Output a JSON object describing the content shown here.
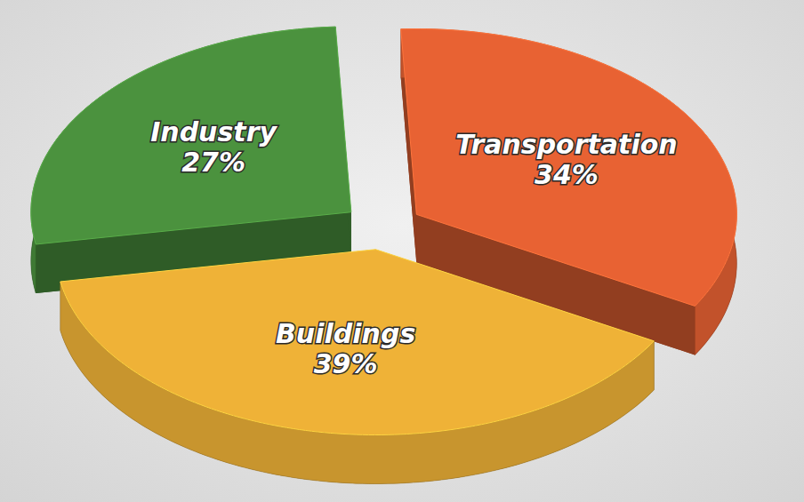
{
  "chart_data": {
    "type": "pie",
    "categories": [
      "Industry",
      "Transportation",
      "Buildings"
    ],
    "values": [
      27,
      34,
      39
    ],
    "value_labels": [
      "27%",
      "34%",
      "39%"
    ],
    "colors": [
      "#3f7a34",
      "#c2522b",
      "#c8952e"
    ],
    "data_labels": true
  }
}
